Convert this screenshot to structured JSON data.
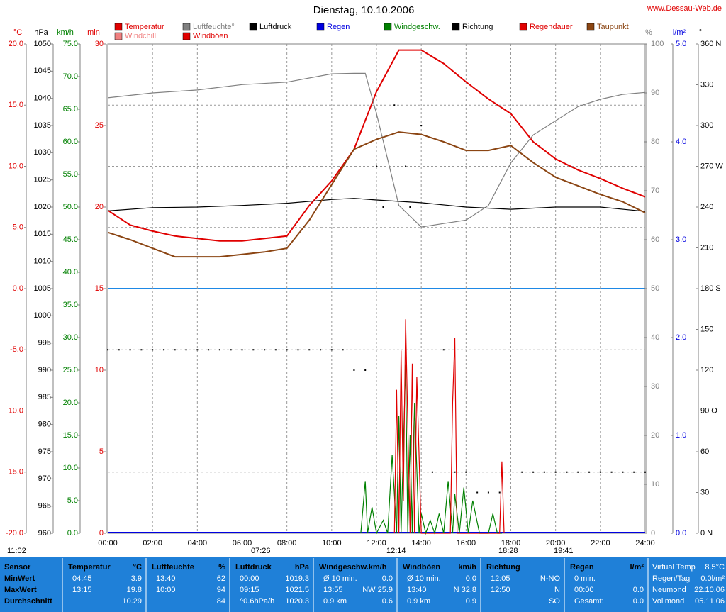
{
  "chart_data": {
    "type": "line",
    "title": "Dienstag, 10.10.2006",
    "site": "www.Dessau-Web.de",
    "xlim": [
      0,
      24
    ],
    "xticks": [
      {
        "value": 0,
        "label": "00:00"
      },
      {
        "value": 2,
        "label": "02:00"
      },
      {
        "value": 4,
        "label": "04:00"
      },
      {
        "value": 6,
        "label": "06:00"
      },
      {
        "value": 8,
        "label": "08:00"
      },
      {
        "value": 10,
        "label": "10:00"
      },
      {
        "value": 12,
        "label": "12:00"
      },
      {
        "value": 14,
        "label": "14:00"
      },
      {
        "value": 16,
        "label": "16:00"
      },
      {
        "value": 18,
        "label": "18:00"
      },
      {
        "value": 20,
        "label": "20:00"
      },
      {
        "value": 22,
        "label": "22:00"
      },
      {
        "value": 24,
        "label": "24:00"
      }
    ],
    "grid": true,
    "axes": [
      {
        "label": "°C",
        "color": "#e00000",
        "lim": [
          -20,
          20
        ],
        "ticks": [
          {
            "value": 20,
            "label": "20.0"
          },
          {
            "value": 15,
            "label": "15.0"
          },
          {
            "value": 10,
            "label": "10.0"
          },
          {
            "value": 5,
            "label": "5.0"
          },
          {
            "value": 0,
            "label": "0.0"
          },
          {
            "value": -5,
            "label": "-5.0"
          },
          {
            "value": -10,
            "label": "-10.0"
          },
          {
            "value": -15,
            "label": "-15.0"
          },
          {
            "value": -20,
            "label": "-20.0"
          }
        ]
      },
      {
        "label": "hPa",
        "color": "#000000",
        "lim": [
          960,
          1050
        ],
        "ticks": [
          1050,
          1045,
          1040,
          1035,
          1030,
          1025,
          1020,
          1015,
          1010,
          1005,
          1000,
          995,
          990,
          985,
          980,
          975,
          970,
          965,
          960
        ]
      },
      {
        "label": "km/h",
        "color": "#008000",
        "lim": [
          0,
          75
        ],
        "ticks": [
          {
            "value": 75,
            "label": "75.0"
          },
          {
            "value": 70,
            "label": "70.0"
          },
          {
            "value": 65,
            "label": "65.0"
          },
          {
            "value": 60,
            "label": "60.0"
          },
          {
            "value": 55,
            "label": "55.0"
          },
          {
            "value": 50,
            "label": "50.0"
          },
          {
            "value": 45,
            "label": "45.0"
          },
          {
            "value": 40,
            "label": "40.0"
          },
          {
            "value": 35,
            "label": "35.0"
          },
          {
            "value": 30,
            "label": "30.0"
          },
          {
            "value": 25,
            "label": "25.0"
          },
          {
            "value": 20,
            "label": "20.0"
          },
          {
            "value": 15,
            "label": "15.0"
          },
          {
            "value": 10,
            "label": "10.0"
          },
          {
            "value": 5,
            "label": "5.0"
          },
          {
            "value": 0,
            "label": "0.0"
          }
        ]
      },
      {
        "label": "min",
        "color": "#e00000",
        "lim": [
          0,
          30
        ],
        "ticks": [
          30,
          25,
          20,
          15,
          10,
          5,
          0
        ]
      },
      {
        "label": "%",
        "color": "#808080",
        "lim": [
          0,
          100
        ],
        "ticks": [
          100,
          90,
          80,
          70,
          60,
          50,
          40,
          30,
          20,
          10,
          0
        ]
      },
      {
        "label": "l/m²",
        "color": "#0000e0",
        "lim": [
          0,
          5
        ],
        "ticks": [
          {
            "value": 5,
            "label": "5.0"
          },
          {
            "value": 4,
            "label": "4.0"
          },
          {
            "value": 3,
            "label": "3.0"
          },
          {
            "value": 2,
            "label": "2.0"
          },
          {
            "value": 1,
            "label": "1.0"
          },
          {
            "value": 0,
            "label": "0.0"
          }
        ]
      },
      {
        "label": "°",
        "color": "#000000",
        "lim": [
          0,
          360
        ],
        "ticks": [
          {
            "value": 360,
            "label": "360 N"
          },
          330,
          300,
          {
            "value": 270,
            "label": "270 W"
          },
          240,
          210,
          {
            "value": 180,
            "label": "180 S"
          },
          150,
          120,
          {
            "value": 90,
            "label": "90 O"
          },
          60,
          30,
          {
            "value": 0,
            "label": "0 N"
          }
        ]
      }
    ],
    "series": [
      {
        "name": "Temperatur",
        "color": "#e00000",
        "axis": "°C",
        "x": [
          0,
          1,
          2,
          3,
          4,
          5,
          6,
          7,
          8,
          9,
          10,
          11,
          12,
          13,
          14,
          15,
          16,
          17,
          18,
          19,
          20,
          21,
          22,
          23,
          24
        ],
        "values": [
          6.4,
          5.2,
          4.7,
          4.3,
          4.1,
          3.9,
          3.9,
          4.1,
          4.3,
          6.8,
          8.8,
          11.4,
          16.1,
          19.5,
          19.5,
          18.4,
          16.9,
          15.5,
          14.3,
          12.0,
          10.6,
          9.7,
          9.0,
          8.2,
          7.5
        ]
      },
      {
        "name": "Luftfeuchte°",
        "color": "#808080",
        "axis": "%",
        "x": [
          0,
          2,
          4,
          6,
          8,
          10,
          11,
          11.5,
          12,
          13,
          14,
          15,
          16,
          17,
          18,
          19,
          20,
          21,
          22,
          23,
          24
        ],
        "values": [
          89,
          90,
          90.6,
          91.7,
          92.2,
          93.9,
          94,
          94,
          85.8,
          67,
          62.6,
          63.3,
          64,
          67,
          75.7,
          81.4,
          84.3,
          87.2,
          88.7,
          89.7,
          90.1
        ]
      },
      {
        "name": "Luftdruck",
        "color": "#000000",
        "axis": "hPa",
        "x": [
          0,
          2,
          4,
          6,
          8,
          10,
          11,
          12,
          14,
          16,
          18,
          20,
          22,
          24
        ],
        "values": [
          1019.3,
          1019.9,
          1020,
          1020.3,
          1020.7,
          1021.4,
          1021.6,
          1021.3,
          1020.8,
          1020,
          1019.6,
          1020,
          1020,
          1019.2
        ]
      },
      {
        "name": "Regen",
        "color": "#0000e0",
        "axis": "l/m²"
      },
      {
        "name": "Windgeschw.",
        "color": "#008000",
        "axis": "km/h",
        "x": [
          11.3,
          11.5,
          11.6,
          11.8,
          12,
          12.3,
          12.5,
          12.7,
          12.9,
          13,
          13.1,
          13.3,
          13.4,
          13.5,
          13.6,
          13.7,
          13.9,
          14,
          14.2,
          14.4,
          14.6,
          14.8,
          15,
          15.2,
          15.4,
          15.5,
          15.7,
          15.9,
          16.1,
          16.3,
          16.6,
          17,
          17.2,
          17.4,
          17.6
        ],
        "values": [
          0,
          8,
          0,
          4,
          0,
          2,
          0,
          12,
          0,
          18,
          0,
          25.9,
          0,
          15,
          0,
          20,
          0,
          3,
          0,
          2,
          0,
          3,
          0,
          8,
          0,
          6,
          0,
          7,
          0,
          5,
          0,
          0,
          3,
          0,
          0
        ]
      },
      {
        "name": "Richtung",
        "color": "#000000",
        "axis": "°",
        "type": "scatter",
        "x": [
          0,
          0.5,
          1,
          1.5,
          2,
          2.5,
          3,
          3.5,
          4,
          4.5,
          5,
          5.5,
          6,
          6.5,
          7,
          7.5,
          8,
          8.5,
          9,
          9.5,
          10,
          10.5,
          11,
          11.5,
          12,
          12.3,
          12.8,
          13.3,
          13.5,
          14,
          14.5,
          15,
          15.5,
          16,
          16.5,
          17,
          17.5,
          18.5,
          19,
          19.5,
          20,
          20.5,
          21,
          21.5,
          22,
          22.5,
          23,
          23.5,
          24
        ],
        "values": [
          135,
          135,
          135,
          135,
          135,
          135,
          135,
          135,
          135,
          135,
          135,
          135,
          135,
          135,
          135,
          135,
          135,
          135,
          135,
          135,
          135,
          135,
          120,
          120,
          270,
          240,
          315,
          270,
          240,
          300,
          45,
          135,
          45,
          45,
          30,
          30,
          30,
          45,
          45,
          45,
          45,
          45,
          45,
          45,
          45,
          45,
          45,
          45,
          45
        ]
      },
      {
        "name": "Regendauer",
        "color": "#e00000",
        "axis": "min"
      },
      {
        "name": "Taupunkt",
        "color": "#8b4513",
        "axis": "°C",
        "x": [
          0,
          1,
          2,
          3,
          4,
          5,
          6,
          7,
          8,
          9,
          10,
          11,
          12,
          13,
          14,
          15,
          16,
          17,
          18,
          19,
          20,
          21,
          22,
          23,
          24
        ],
        "values": [
          4.6,
          4.0,
          3.3,
          2.6,
          2.6,
          2.6,
          2.8,
          3.0,
          3.3,
          5.6,
          8.5,
          11.4,
          12.2,
          12.8,
          12.6,
          12.0,
          11.3,
          11.3,
          11.7,
          10.3,
          9.1,
          8.4,
          7.7,
          7.1,
          6.2
        ]
      },
      {
        "name": "Windchill",
        "color": "#f08080",
        "axis": "°C"
      },
      {
        "name": "Windböen",
        "color": "#e00000",
        "axis": "km/h",
        "x": [
          12.8,
          12.9,
          13,
          13.1,
          13.2,
          13.3,
          13.5,
          13.6,
          13.7,
          13.8,
          14,
          15.3,
          15.4,
          15.5,
          15.6,
          15.7,
          17.5,
          17.6,
          17.7
        ],
        "values": [
          0,
          22,
          0,
          28,
          5,
          32.8,
          0,
          26,
          0,
          24,
          0,
          0,
          20,
          30,
          0,
          0,
          0,
          11,
          0
        ]
      }
    ],
    "markers": [
      "11:02",
      "07:26",
      "12:14",
      "18:28",
      "19:41"
    ]
  },
  "stats": {
    "columns": [
      {
        "header": "Sensor",
        "rows": [
          {
            "left": "MinWert"
          },
          {
            "left": "MaxWert"
          },
          {
            "left": "Durchschnitt"
          }
        ]
      },
      {
        "header": "Temperatur",
        "unit": "°C",
        "rows": [
          {
            "left": "04:45",
            "right": "3.9"
          },
          {
            "left": "13:15",
            "right": "19.8"
          },
          {
            "right": "10.29"
          }
        ]
      },
      {
        "header": "Luftfeuchte",
        "unit": "%",
        "rows": [
          {
            "left": "13:40",
            "right": "62"
          },
          {
            "left": "10:00",
            "right": "94"
          },
          {
            "right": "84"
          }
        ]
      },
      {
        "header": "Luftdruck",
        "unit": "hPa",
        "rows": [
          {
            "left": "00:00",
            "right": "1019.3"
          },
          {
            "left": "09:15",
            "right": "1021.5"
          },
          {
            "left": "^0.6hPa/h",
            "right": "1020.3"
          }
        ]
      },
      {
        "header": "Windgeschw.km/h",
        "rows": [
          {
            "left": "Ø 10 min.",
            "right": "0.0"
          },
          {
            "left": "13:55",
            "right": "NW 25.9"
          },
          {
            "left": "0.9 km",
            "right": "0.6"
          }
        ]
      },
      {
        "header": "Windböen",
        "unit": "km/h",
        "rows": [
          {
            "left": "Ø 10 min.",
            "right": "0.0"
          },
          {
            "left": "13:40",
            "right": "N 32.8"
          },
          {
            "left": "0.9 km",
            "right": "0.9"
          }
        ]
      },
      {
        "header": "Richtung",
        "rows": [
          {
            "left": "12:05",
            "right": "N-NO"
          },
          {
            "left": "12:50",
            "right": "N"
          },
          {
            "right": "SO"
          }
        ]
      },
      {
        "header": "Regen",
        "unit": "l/m²",
        "rows": [
          {
            "left": "0 min."
          },
          {
            "left": "00:00",
            "right": "0.0"
          },
          {
            "left": "Gesamt:",
            "right": "0.0"
          }
        ]
      }
    ],
    "side": [
      {
        "left": "Virtual Temp",
        "right": "8.5°C"
      },
      {
        "left": "Regen/Tag",
        "right": "0.0l/m²"
      },
      {
        "left": "Neumond",
        "right": "22.10.06"
      },
      {
        "left": "Vollmond",
        "right": "05.11.06"
      }
    ]
  }
}
